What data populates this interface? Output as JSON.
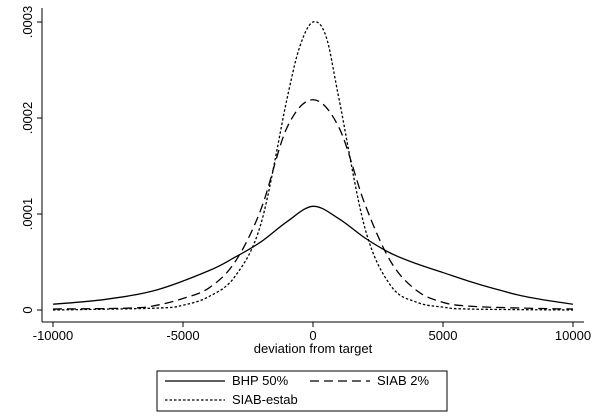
{
  "chart_data": {
    "type": "line",
    "title": "",
    "xlabel": "deviation from target",
    "ylabel": "",
    "xlim": [
      -10000,
      10000
    ],
    "ylim": [
      0,
      0.0003
    ],
    "x_ticks": [
      {
        "value": -10000,
        "label": "-10000"
      },
      {
        "value": -5000,
        "label": "-5000"
      },
      {
        "value": 0,
        "label": "0"
      },
      {
        "value": 5000,
        "label": "5000"
      },
      {
        "value": 10000,
        "label": "10000"
      }
    ],
    "y_ticks": [
      {
        "value": 0,
        "label": "0"
      },
      {
        "value": 0.0001,
        "label": ".0001"
      },
      {
        "value": 0.0002,
        "label": ".0002"
      },
      {
        "value": 0.0003,
        "label": ".0003"
      }
    ],
    "grid": false,
    "legend_position": "bottom",
    "series": [
      {
        "name": "BHP 50%",
        "style": "solid",
        "points": [
          [
            -10000,
            6e-06
          ],
          [
            -8000,
            1.1e-05
          ],
          [
            -6000,
            2.1e-05
          ],
          [
            -4000,
            4.1e-05
          ],
          [
            -3000,
            5.5e-05
          ],
          [
            -2000,
            7.1e-05
          ],
          [
            -1000,
            9.2e-05
          ],
          [
            0,
            0.000108
          ],
          [
            1000,
            9.5e-05
          ],
          [
            2000,
            7.5e-05
          ],
          [
            3000,
            5.9e-05
          ],
          [
            4000,
            4.8e-05
          ],
          [
            5000,
            3.9e-05
          ],
          [
            6000,
            3e-05
          ],
          [
            7000,
            2.2e-05
          ],
          [
            8000,
            1.5e-05
          ],
          [
            9000,
            1e-05
          ],
          [
            10000,
            6e-06
          ]
        ]
      },
      {
        "name": "SIAB 2%",
        "style": "dashed",
        "points": [
          [
            -10000,
            1e-06
          ],
          [
            -7000,
            2e-06
          ],
          [
            -6000,
            5e-06
          ],
          [
            -5000,
            1.2e-05
          ],
          [
            -4000,
            2.3e-05
          ],
          [
            -3000,
            5e-05
          ],
          [
            -2000,
            0.000105
          ],
          [
            -1000,
            0.00019
          ],
          [
            0,
            0.000219
          ],
          [
            1000,
            0.00019
          ],
          [
            2000,
            0.00011
          ],
          [
            3000,
            5e-05
          ],
          [
            4000,
            2e-05
          ],
          [
            5000,
            8e-06
          ],
          [
            6000,
            4e-06
          ],
          [
            8000,
            2e-06
          ],
          [
            10000,
            1e-06
          ]
        ]
      },
      {
        "name": "SIAB-estab",
        "style": "dotted",
        "points": [
          [
            -10000,
            0.0
          ],
          [
            -6000,
            2e-06
          ],
          [
            -5000,
            5e-06
          ],
          [
            -4000,
            1.4e-05
          ],
          [
            -3000,
            3.5e-05
          ],
          [
            -2000,
            9e-05
          ],
          [
            -1000,
            0.00022
          ],
          [
            -500,
            0.000275
          ],
          [
            0,
            0.0003
          ],
          [
            500,
            0.000285
          ],
          [
            1000,
            0.00022
          ],
          [
            2000,
            8.5e-05
          ],
          [
            3000,
            2.5e-05
          ],
          [
            4000,
            8e-06
          ],
          [
            5000,
            3e-06
          ],
          [
            6000,
            1e-06
          ],
          [
            10000,
            0.0
          ]
        ]
      }
    ]
  }
}
